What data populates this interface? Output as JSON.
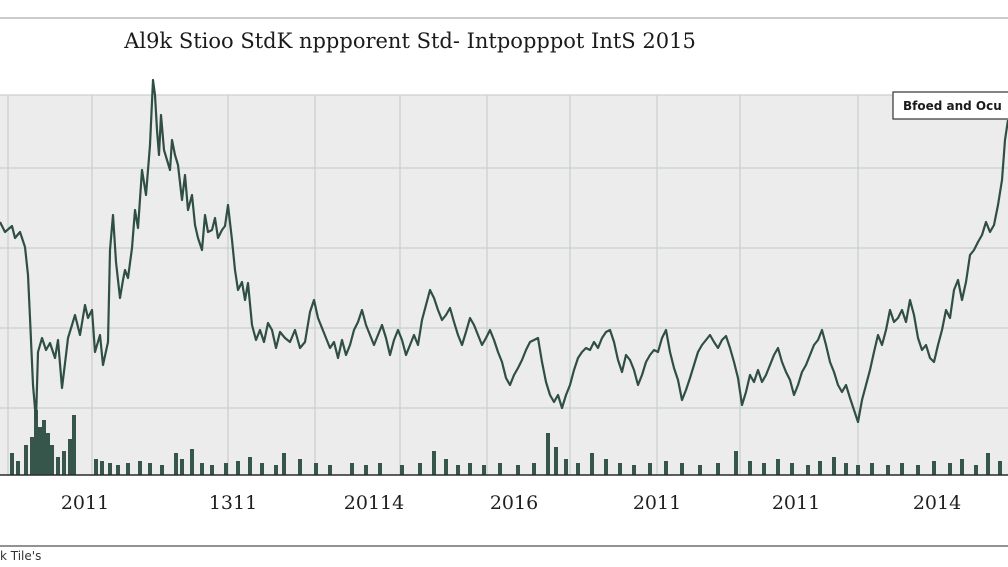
{
  "chart_data": {
    "type": "line",
    "title": "Al9k Stioo StdK nppporent Std- Intpopppot IntS 2015",
    "footer_label": "k Tile's",
    "legend": {
      "label": "Bfoed and Ocu",
      "placement": "top-right"
    },
    "x_tick_labels": [
      "2011",
      "1311",
      "20114",
      "2016",
      "2011",
      "2011",
      "2014"
    ],
    "grid": true,
    "colors": {
      "price_line": "#2f4f45",
      "volume_bar": "#36564b",
      "grid": "#c9cfcc",
      "plot_bg": "#ececec"
    },
    "price": [
      [
        0,
        222
      ],
      [
        5,
        232
      ],
      [
        12,
        226
      ],
      [
        15,
        238
      ],
      [
        20,
        232
      ],
      [
        25,
        247
      ],
      [
        28,
        275
      ],
      [
        30,
        318
      ],
      [
        33,
        385
      ],
      [
        36,
        420
      ],
      [
        38,
        352
      ],
      [
        42,
        338
      ],
      [
        46,
        350
      ],
      [
        50,
        343
      ],
      [
        55,
        358
      ],
      [
        58,
        340
      ],
      [
        62,
        388
      ],
      [
        66,
        355
      ],
      [
        68,
        338
      ],
      [
        72,
        325
      ],
      [
        75,
        315
      ],
      [
        80,
        335
      ],
      [
        85,
        305
      ],
      [
        88,
        318
      ],
      [
        92,
        310
      ],
      [
        95,
        352
      ],
      [
        100,
        335
      ],
      [
        103,
        365
      ],
      [
        108,
        342
      ],
      [
        110,
        250
      ],
      [
        113,
        215
      ],
      [
        116,
        262
      ],
      [
        120,
        298
      ],
      [
        123,
        280
      ],
      [
        125,
        270
      ],
      [
        128,
        278
      ],
      [
        132,
        248
      ],
      [
        135,
        210
      ],
      [
        138,
        228
      ],
      [
        142,
        170
      ],
      [
        146,
        195
      ],
      [
        150,
        145
      ],
      [
        153,
        80
      ],
      [
        155,
        95
      ],
      [
        157,
        130
      ],
      [
        159,
        155
      ],
      [
        161,
        115
      ],
      [
        164,
        150
      ],
      [
        167,
        160
      ],
      [
        170,
        170
      ],
      [
        172,
        140
      ],
      [
        175,
        155
      ],
      [
        178,
        165
      ],
      [
        182,
        200
      ],
      [
        185,
        175
      ],
      [
        188,
        210
      ],
      [
        192,
        195
      ],
      [
        195,
        225
      ],
      [
        198,
        238
      ],
      [
        202,
        250
      ],
      [
        205,
        215
      ],
      [
        208,
        232
      ],
      [
        212,
        230
      ],
      [
        215,
        218
      ],
      [
        218,
        238
      ],
      [
        222,
        230
      ],
      [
        225,
        226
      ],
      [
        228,
        205
      ],
      [
        232,
        240
      ],
      [
        235,
        270
      ],
      [
        238,
        290
      ],
      [
        242,
        282
      ],
      [
        245,
        300
      ],
      [
        248,
        283
      ],
      [
        252,
        325
      ],
      [
        256,
        340
      ],
      [
        260,
        330
      ],
      [
        264,
        342
      ],
      [
        268,
        323
      ],
      [
        272,
        330
      ],
      [
        276,
        348
      ],
      [
        280,
        332
      ],
      [
        285,
        338
      ],
      [
        290,
        342
      ],
      [
        295,
        330
      ],
      [
        300,
        348
      ],
      [
        305,
        342
      ],
      [
        310,
        312
      ],
      [
        314,
        300
      ],
      [
        318,
        318
      ],
      [
        322,
        328
      ],
      [
        326,
        338
      ],
      [
        330,
        348
      ],
      [
        334,
        342
      ],
      [
        338,
        358
      ],
      [
        342,
        340
      ],
      [
        346,
        355
      ],
      [
        350,
        345
      ],
      [
        354,
        330
      ],
      [
        358,
        322
      ],
      [
        362,
        310
      ],
      [
        366,
        325
      ],
      [
        370,
        335
      ],
      [
        374,
        345
      ],
      [
        378,
        335
      ],
      [
        382,
        325
      ],
      [
        386,
        338
      ],
      [
        390,
        355
      ],
      [
        394,
        340
      ],
      [
        398,
        330
      ],
      [
        402,
        340
      ],
      [
        406,
        355
      ],
      [
        410,
        345
      ],
      [
        414,
        335
      ],
      [
        418,
        345
      ],
      [
        422,
        320
      ],
      [
        426,
        305
      ],
      [
        430,
        290
      ],
      [
        434,
        298
      ],
      [
        438,
        310
      ],
      [
        442,
        320
      ],
      [
        446,
        315
      ],
      [
        450,
        308
      ],
      [
        454,
        322
      ],
      [
        458,
        335
      ],
      [
        462,
        345
      ],
      [
        466,
        332
      ],
      [
        470,
        318
      ],
      [
        474,
        325
      ],
      [
        478,
        335
      ],
      [
        482,
        345
      ],
      [
        486,
        338
      ],
      [
        490,
        330
      ],
      [
        494,
        340
      ],
      [
        498,
        352
      ],
      [
        502,
        362
      ],
      [
        506,
        378
      ],
      [
        510,
        385
      ],
      [
        514,
        375
      ],
      [
        518,
        368
      ],
      [
        522,
        360
      ],
      [
        526,
        350
      ],
      [
        530,
        342
      ],
      [
        534,
        340
      ],
      [
        538,
        338
      ],
      [
        542,
        362
      ],
      [
        546,
        382
      ],
      [
        550,
        395
      ],
      [
        554,
        402
      ],
      [
        558,
        395
      ],
      [
        562,
        408
      ],
      [
        566,
        395
      ],
      [
        570,
        385
      ],
      [
        574,
        370
      ],
      [
        578,
        358
      ],
      [
        582,
        352
      ],
      [
        586,
        348
      ],
      [
        590,
        350
      ],
      [
        594,
        342
      ],
      [
        598,
        348
      ],
      [
        602,
        338
      ],
      [
        606,
        332
      ],
      [
        610,
        330
      ],
      [
        614,
        342
      ],
      [
        618,
        360
      ],
      [
        622,
        372
      ],
      [
        626,
        355
      ],
      [
        630,
        360
      ],
      [
        634,
        370
      ],
      [
        638,
        385
      ],
      [
        642,
        375
      ],
      [
        646,
        362
      ],
      [
        650,
        355
      ],
      [
        654,
        350
      ],
      [
        658,
        352
      ],
      [
        662,
        338
      ],
      [
        666,
        330
      ],
      [
        670,
        352
      ],
      [
        674,
        368
      ],
      [
        678,
        380
      ],
      [
        682,
        400
      ],
      [
        686,
        390
      ],
      [
        690,
        378
      ],
      [
        694,
        365
      ],
      [
        698,
        352
      ],
      [
        702,
        345
      ],
      [
        706,
        340
      ],
      [
        710,
        335
      ],
      [
        714,
        342
      ],
      [
        718,
        348
      ],
      [
        722,
        340
      ],
      [
        726,
        336
      ],
      [
        730,
        348
      ],
      [
        734,
        362
      ],
      [
        738,
        378
      ],
      [
        742,
        405
      ],
      [
        746,
        392
      ],
      [
        750,
        375
      ],
      [
        754,
        382
      ],
      [
        758,
        370
      ],
      [
        762,
        382
      ],
      [
        766,
        375
      ],
      [
        770,
        365
      ],
      [
        774,
        355
      ],
      [
        778,
        348
      ],
      [
        782,
        362
      ],
      [
        786,
        372
      ],
      [
        790,
        380
      ],
      [
        794,
        395
      ],
      [
        798,
        385
      ],
      [
        802,
        372
      ],
      [
        806,
        365
      ],
      [
        810,
        355
      ],
      [
        814,
        345
      ],
      [
        818,
        340
      ],
      [
        822,
        330
      ],
      [
        826,
        345
      ],
      [
        830,
        362
      ],
      [
        834,
        372
      ],
      [
        838,
        385
      ],
      [
        842,
        392
      ],
      [
        846,
        385
      ],
      [
        850,
        398
      ],
      [
        854,
        410
      ],
      [
        858,
        422
      ],
      [
        862,
        400
      ],
      [
        866,
        385
      ],
      [
        870,
        370
      ],
      [
        874,
        352
      ],
      [
        878,
        335
      ],
      [
        882,
        345
      ],
      [
        886,
        330
      ],
      [
        890,
        310
      ],
      [
        894,
        322
      ],
      [
        898,
        318
      ],
      [
        902,
        310
      ],
      [
        906,
        322
      ],
      [
        910,
        300
      ],
      [
        914,
        315
      ],
      [
        918,
        338
      ],
      [
        922,
        350
      ],
      [
        926,
        345
      ],
      [
        930,
        358
      ],
      [
        934,
        362
      ],
      [
        938,
        345
      ],
      [
        942,
        330
      ],
      [
        946,
        310
      ],
      [
        950,
        318
      ],
      [
        954,
        290
      ],
      [
        958,
        280
      ],
      [
        962,
        300
      ],
      [
        966,
        282
      ],
      [
        970,
        255
      ],
      [
        974,
        250
      ],
      [
        978,
        242
      ],
      [
        982,
        235
      ],
      [
        986,
        222
      ],
      [
        990,
        232
      ],
      [
        994,
        225
      ],
      [
        998,
        205
      ],
      [
        1002,
        180
      ],
      [
        1005,
        140
      ],
      [
        1008,
        120
      ]
    ],
    "volume": [
      [
        12,
        22
      ],
      [
        18,
        14
      ],
      [
        26,
        30
      ],
      [
        32,
        38
      ],
      [
        36,
        65
      ],
      [
        40,
        48
      ],
      [
        44,
        55
      ],
      [
        48,
        42
      ],
      [
        52,
        30
      ],
      [
        58,
        18
      ],
      [
        64,
        24
      ],
      [
        70,
        36
      ],
      [
        74,
        60
      ],
      [
        96,
        16
      ],
      [
        102,
        14
      ],
      [
        110,
        12
      ],
      [
        118,
        10
      ],
      [
        128,
        12
      ],
      [
        140,
        14
      ],
      [
        150,
        12
      ],
      [
        162,
        10
      ],
      [
        176,
        22
      ],
      [
        182,
        16
      ],
      [
        192,
        26
      ],
      [
        202,
        12
      ],
      [
        212,
        10
      ],
      [
        226,
        12
      ],
      [
        238,
        14
      ],
      [
        250,
        18
      ],
      [
        262,
        12
      ],
      [
        276,
        10
      ],
      [
        284,
        22
      ],
      [
        300,
        16
      ],
      [
        316,
        12
      ],
      [
        330,
        10
      ],
      [
        352,
        12
      ],
      [
        366,
        10
      ],
      [
        380,
        12
      ],
      [
        402,
        10
      ],
      [
        420,
        12
      ],
      [
        434,
        24
      ],
      [
        446,
        16
      ],
      [
        458,
        10
      ],
      [
        470,
        12
      ],
      [
        484,
        10
      ],
      [
        500,
        12
      ],
      [
        518,
        10
      ],
      [
        534,
        12
      ],
      [
        548,
        42
      ],
      [
        556,
        28
      ],
      [
        566,
        16
      ],
      [
        578,
        12
      ],
      [
        592,
        22
      ],
      [
        606,
        16
      ],
      [
        620,
        12
      ],
      [
        634,
        10
      ],
      [
        650,
        12
      ],
      [
        666,
        14
      ],
      [
        682,
        12
      ],
      [
        700,
        10
      ],
      [
        718,
        12
      ],
      [
        736,
        24
      ],
      [
        750,
        14
      ],
      [
        764,
        12
      ],
      [
        778,
        16
      ],
      [
        792,
        12
      ],
      [
        808,
        10
      ],
      [
        820,
        14
      ],
      [
        834,
        18
      ],
      [
        846,
        12
      ],
      [
        858,
        10
      ],
      [
        872,
        12
      ],
      [
        888,
        10
      ],
      [
        902,
        12
      ],
      [
        918,
        10
      ],
      [
        934,
        14
      ],
      [
        950,
        12
      ],
      [
        962,
        16
      ],
      [
        976,
        10
      ],
      [
        988,
        22
      ],
      [
        1000,
        14
      ]
    ]
  }
}
